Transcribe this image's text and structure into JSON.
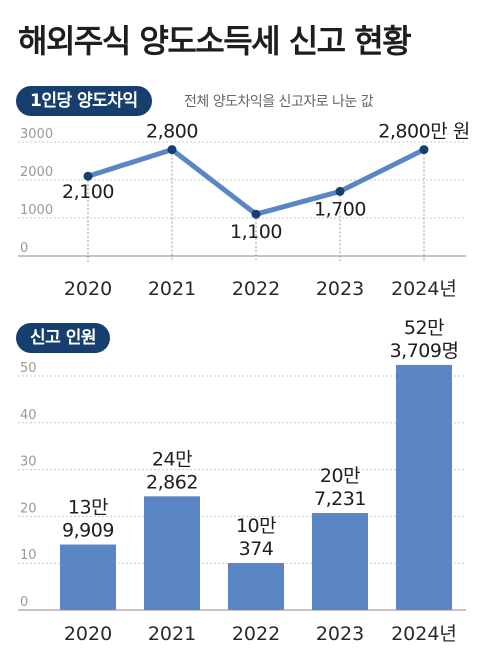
{
  "title": "해외주식 양도소득세 신고 현황",
  "colors": {
    "line": "#5b86c5",
    "bar": "#5b86c5",
    "pill": "#173f6e",
    "grid": "#999999"
  },
  "chart_data": [
    {
      "type": "line",
      "title": "1인당 양도차익",
      "subtitle": "전체 양도차익을 신고자로 나눈 값",
      "categories": [
        "2020",
        "2021",
        "2022",
        "2023",
        "2024년"
      ],
      "values": [
        2100,
        2800,
        1100,
        1700,
        2800
      ],
      "data_labels": [
        "2,100",
        "2,800",
        "1,100",
        "1,700",
        "2,800만 원"
      ],
      "yticks": [
        "0",
        "1000",
        "2000",
        "3000"
      ],
      "ylim": [
        0,
        3000
      ],
      "grid": true
    },
    {
      "type": "bar",
      "title": "신고 인원",
      "categories": [
        "2020",
        "2021",
        "2022",
        "2023",
        "2024년"
      ],
      "values": [
        139909,
        242862,
        100374,
        207231,
        523709
      ],
      "labels_top": [
        "13만",
        "24만",
        "10만",
        "20만",
        "52만"
      ],
      "labels_bottom": [
        "9,909",
        "2,862",
        "374",
        "7,231",
        "3,709명"
      ],
      "yticks": [
        "0",
        "10",
        "20",
        "30",
        "40",
        "50"
      ],
      "ylim": [
        0,
        55
      ],
      "grid": true
    }
  ]
}
